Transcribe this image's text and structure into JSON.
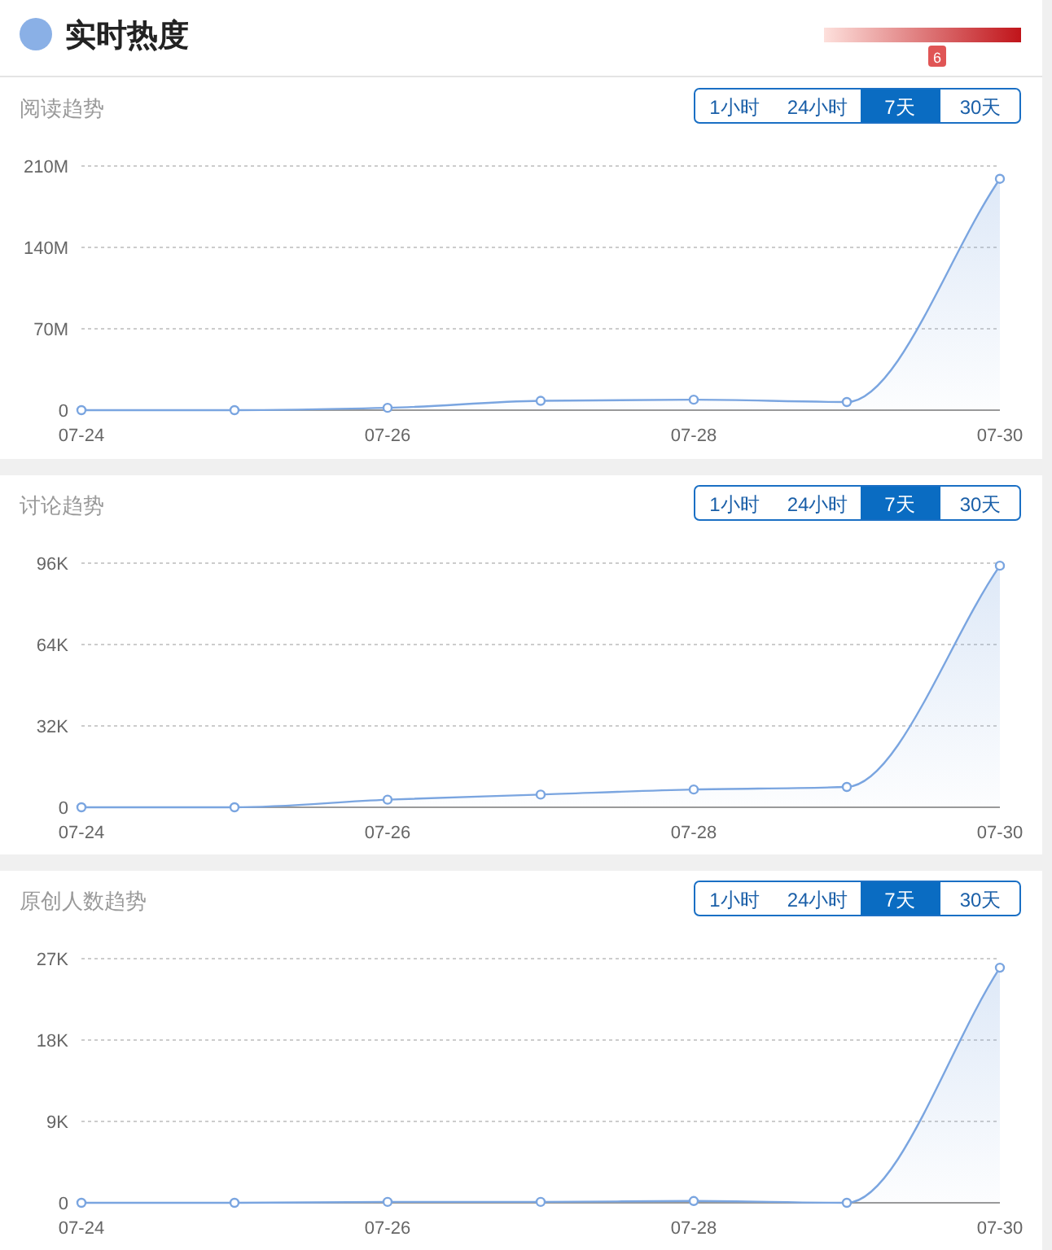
{
  "chart_data": [
    {
      "type": "other",
      "title": "实时热度",
      "annotations": [
        "6"
      ]
    },
    {
      "type": "line",
      "title": "阅读趋势",
      "annotations": [
        "1小时",
        "24小时",
        "7天",
        "30天"
      ],
      "x": [
        "--07-24",
        "--07-25",
        "--07-26",
        "--07-27",
        "--07-28",
        "--07-29",
        "--07-30"
      ],
      "series": [
        {
          "color": "#7aa5e0",
          "values": [
            0,
            0,
            2,
            8,
            9,
            7,
            199
          ]
        }
      ],
      "ylim": [
        0,
        210
      ],
      "yticks": [
        {
          "value": 0,
          "label": "0"
        },
        {
          "value": 70,
          "label": "70M"
        },
        {
          "value": 140,
          "label": "140M"
        },
        {
          "value": 210,
          "label": "210M"
        }
      ],
      "xlim": [
        "--07-24",
        "--07-30"
      ],
      "xticks": [
        {
          "value": "--07-24",
          "label": "07-24"
        },
        {
          "value": "--07-26",
          "label": "07-26"
        },
        {
          "value": "--07-28",
          "label": "07-28"
        },
        {
          "value": "--07-30",
          "label": "07-30"
        }
      ],
      "grid": "y",
      "marker": "circle"
    },
    {
      "type": "line",
      "title": "讨论趋势",
      "annotations": [
        "1小时",
        "24小时",
        "7天",
        "30天"
      ],
      "x": [
        "--07-24",
        "--07-25",
        "--07-26",
        "--07-27",
        "--07-28",
        "--07-29",
        "--07-30"
      ],
      "series": [
        {
          "color": "#7aa5e0",
          "values": [
            0,
            0,
            3,
            5,
            7,
            8,
            95
          ]
        }
      ],
      "ylim": [
        0,
        96
      ],
      "yticks": [
        {
          "value": 0,
          "label": "0"
        },
        {
          "value": 32,
          "label": "32K"
        },
        {
          "value": 64,
          "label": "64K"
        },
        {
          "value": 96,
          "label": "96K"
        }
      ],
      "xlim": [
        "--07-24",
        "--07-30"
      ],
      "xticks": [
        {
          "value": "--07-24",
          "label": "07-24"
        },
        {
          "value": "--07-26",
          "label": "07-26"
        },
        {
          "value": "--07-28",
          "label": "07-28"
        },
        {
          "value": "--07-30",
          "label": "07-30"
        }
      ],
      "grid": "y",
      "marker": "circle"
    },
    {
      "type": "line",
      "title": "原创人数趋势",
      "annotations": [
        "1小时",
        "24小时",
        "7天",
        "30天"
      ],
      "x": [
        "--07-24",
        "--07-25",
        "--07-26",
        "--07-27",
        "--07-28",
        "--07-29",
        "--07-30"
      ],
      "series": [
        {
          "color": "#7aa5e0",
          "values": [
            0,
            0,
            0.1,
            0.1,
            0.2,
            0,
            26
          ]
        }
      ],
      "ylim": [
        0,
        27
      ],
      "yticks": [
        {
          "value": 0,
          "label": "0"
        },
        {
          "value": 9,
          "label": "9K"
        },
        {
          "value": 18,
          "label": "18K"
        },
        {
          "value": 27,
          "label": "27K"
        }
      ],
      "xlim": [
        "--07-24",
        "--07-30"
      ],
      "xticks": [
        {
          "value": "--07-24",
          "label": "07-24"
        },
        {
          "value": "--07-26",
          "label": "07-26"
        },
        {
          "value": "--07-28",
          "label": "07-28"
        },
        {
          "value": "--07-30",
          "label": "07-30"
        }
      ],
      "grid": "y",
      "marker": "circle"
    }
  ]
}
